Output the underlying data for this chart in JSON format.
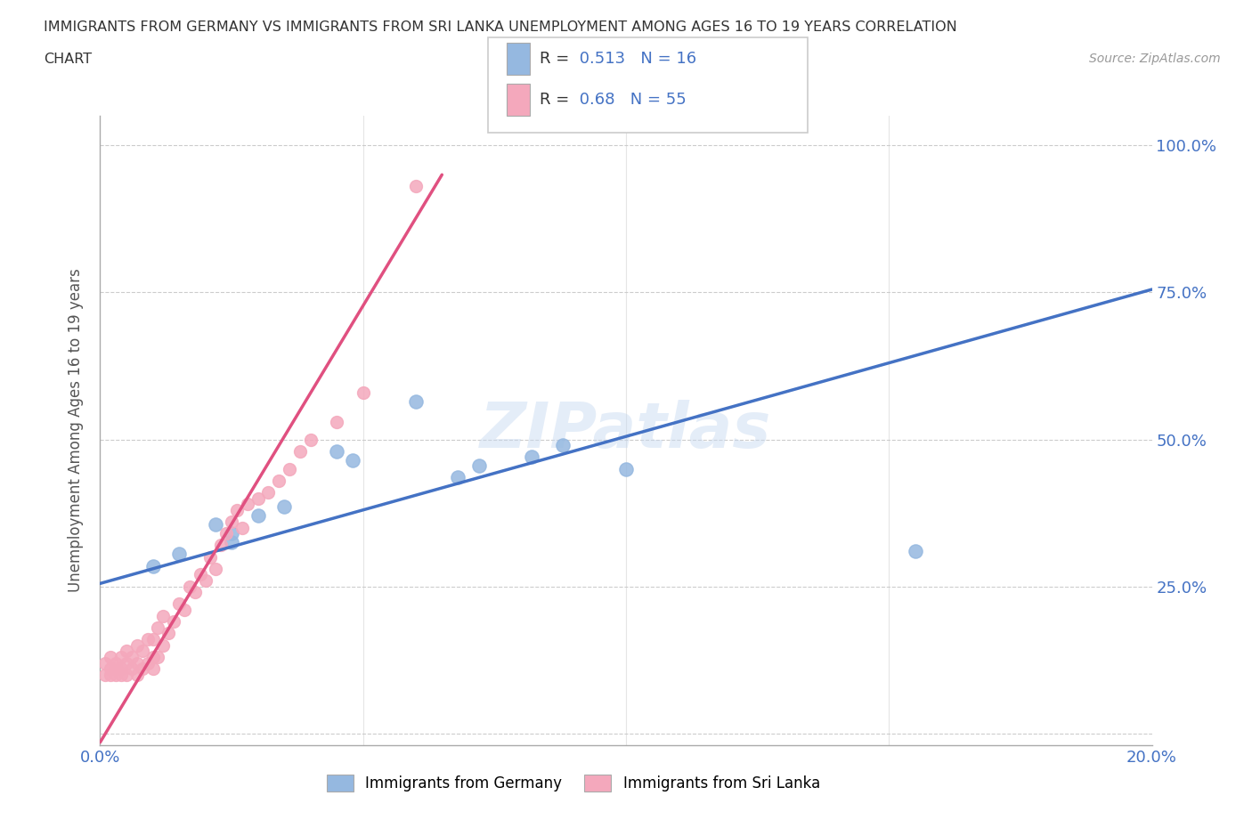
{
  "title_line1": "IMMIGRANTS FROM GERMANY VS IMMIGRANTS FROM SRI LANKA UNEMPLOYMENT AMONG AGES 16 TO 19 YEARS CORRELATION",
  "title_line2": "CHART",
  "source_text": "Source: ZipAtlas.com",
  "ylabel": "Unemployment Among Ages 16 to 19 years",
  "xlim": [
    0.0,
    0.2
  ],
  "ylim": [
    -0.02,
    1.05
  ],
  "xtick_positions": [
    0.0,
    0.05,
    0.1,
    0.15,
    0.2
  ],
  "xtick_labels": [
    "0.0%",
    "",
    "",
    "",
    "20.0%"
  ],
  "ytick_positions": [
    0.0,
    0.25,
    0.5,
    0.75,
    1.0
  ],
  "ytick_labels": [
    "",
    "25.0%",
    "50.0%",
    "75.0%",
    "100.0%"
  ],
  "germany_color": "#95b8e0",
  "srilanka_color": "#f4a8bc",
  "germany_line_color": "#4472c4",
  "srilanka_line_color": "#e05080",
  "germany_R": 0.513,
  "germany_N": 16,
  "srilanka_R": 0.68,
  "srilanka_N": 55,
  "watermark": "ZIPatlas",
  "germany_scatter_x": [
    0.01,
    0.015,
    0.022,
    0.025,
    0.03,
    0.035,
    0.045,
    0.048,
    0.06,
    0.068,
    0.072,
    0.082,
    0.088,
    0.1,
    0.155,
    0.025
  ],
  "germany_scatter_y": [
    0.285,
    0.305,
    0.355,
    0.34,
    0.37,
    0.385,
    0.48,
    0.465,
    0.565,
    0.435,
    0.455,
    0.47,
    0.49,
    0.45,
    0.31,
    0.325
  ],
  "srilanka_scatter_x": [
    0.001,
    0.001,
    0.002,
    0.002,
    0.002,
    0.003,
    0.003,
    0.003,
    0.004,
    0.004,
    0.004,
    0.005,
    0.005,
    0.005,
    0.006,
    0.006,
    0.007,
    0.007,
    0.007,
    0.008,
    0.008,
    0.009,
    0.009,
    0.01,
    0.01,
    0.01,
    0.011,
    0.011,
    0.012,
    0.012,
    0.013,
    0.014,
    0.015,
    0.016,
    0.017,
    0.018,
    0.019,
    0.02,
    0.021,
    0.022,
    0.023,
    0.024,
    0.025,
    0.026,
    0.027,
    0.028,
    0.03,
    0.032,
    0.034,
    0.036,
    0.038,
    0.04,
    0.045,
    0.05,
    0.06
  ],
  "srilanka_scatter_y": [
    0.1,
    0.12,
    0.1,
    0.11,
    0.13,
    0.1,
    0.11,
    0.12,
    0.1,
    0.11,
    0.13,
    0.1,
    0.12,
    0.14,
    0.11,
    0.13,
    0.1,
    0.12,
    0.15,
    0.11,
    0.14,
    0.12,
    0.16,
    0.11,
    0.13,
    0.16,
    0.13,
    0.18,
    0.15,
    0.2,
    0.17,
    0.19,
    0.22,
    0.21,
    0.25,
    0.24,
    0.27,
    0.26,
    0.3,
    0.28,
    0.32,
    0.34,
    0.36,
    0.38,
    0.35,
    0.39,
    0.4,
    0.41,
    0.43,
    0.45,
    0.48,
    0.5,
    0.53,
    0.58,
    0.93
  ],
  "germany_trend_x0": 0.0,
  "germany_trend_y0": 0.255,
  "germany_trend_x1": 0.2,
  "germany_trend_y1": 0.755,
  "srilanka_trend_x0": 0.0,
  "srilanka_trend_y0": -0.015,
  "srilanka_trend_x1": 0.065,
  "srilanka_trend_y1": 0.95,
  "background_color": "#ffffff",
  "grid_color": "#cccccc",
  "tick_color": "#4472c4",
  "title_color": "#333333",
  "source_color": "#999999",
  "ylabel_color": "#555555"
}
